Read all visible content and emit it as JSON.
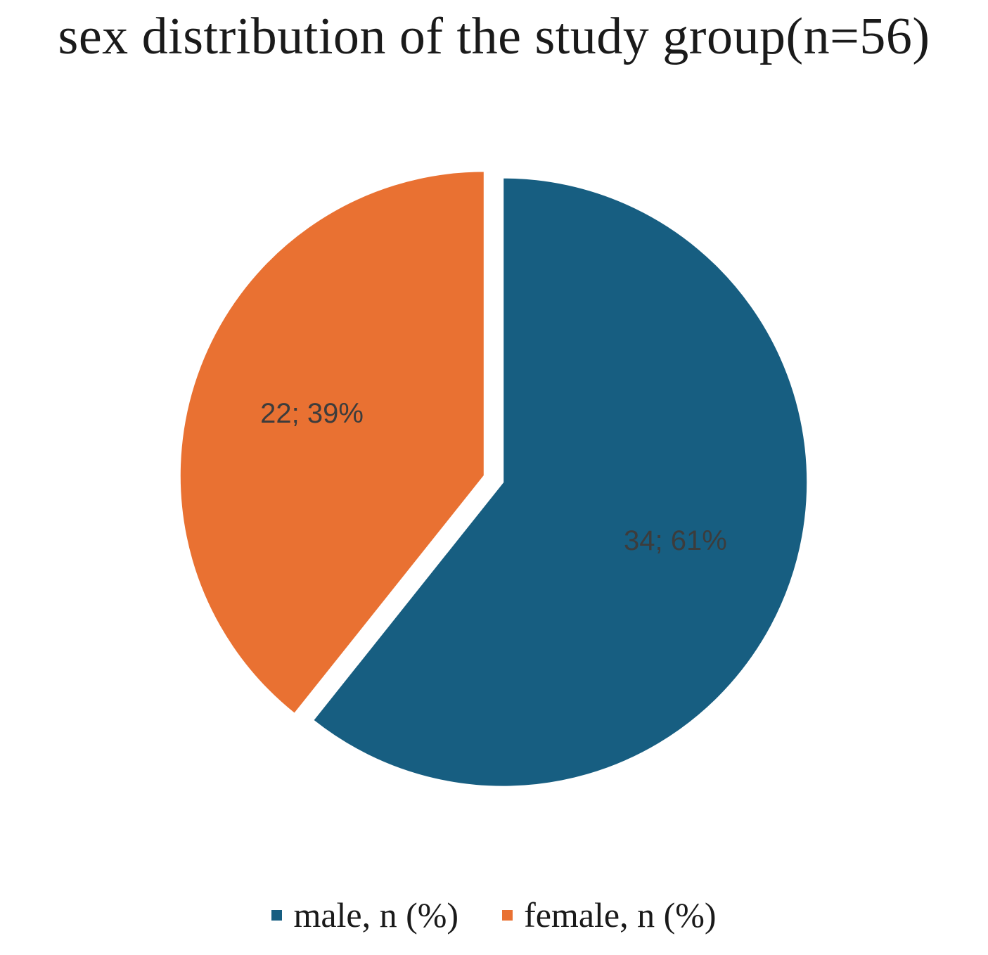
{
  "chart_data": {
    "type": "pie",
    "title": "sex distribution  of the study  group(n=56)",
    "slices": [
      {
        "name": "male, n (%)",
        "value": 34,
        "percent": 61,
        "label": "34; 61%",
        "color": "#175e81"
      },
      {
        "name": "female, n (%)",
        "value": 22,
        "percent": 39,
        "label": "22; 39%",
        "color": "#e97132"
      }
    ],
    "legend_position": "bottom",
    "exploded": true
  }
}
